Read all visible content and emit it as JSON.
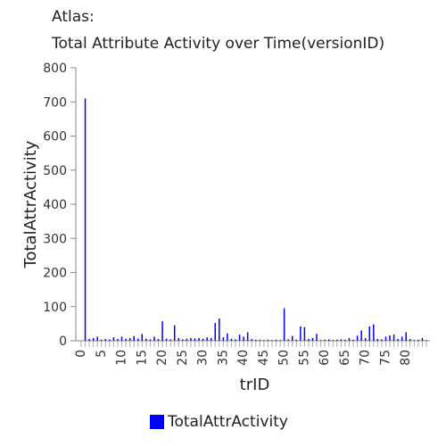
{
  "chart_data": {
    "type": "bar",
    "title": "Atlas:",
    "subtitle": "Total Attribute Activity over Time(versionID)",
    "xlabel": "trID",
    "ylabel": "TotalAttrActivity",
    "ylim": [
      0,
      800
    ],
    "yticks": [
      0,
      100,
      200,
      300,
      400,
      500,
      600,
      700,
      800
    ],
    "xlim": [
      0,
      85
    ],
    "xticks": [
      0,
      5,
      10,
      15,
      20,
      25,
      30,
      35,
      40,
      45,
      50,
      55,
      60,
      65,
      70,
      75,
      80
    ],
    "grid": false,
    "legend_position": "bottom",
    "color": "#0000ff",
    "series": [
      {
        "name": "TotalAttrActivity",
        "x": [
          1,
          2,
          3,
          4,
          5,
          6,
          7,
          8,
          9,
          10,
          11,
          12,
          13,
          14,
          15,
          16,
          17,
          18,
          19,
          20,
          21,
          22,
          23,
          24,
          25,
          26,
          27,
          28,
          29,
          30,
          31,
          32,
          33,
          34,
          35,
          36,
          37,
          38,
          39,
          40,
          41,
          42,
          43,
          44,
          45,
          46,
          47,
          48,
          49,
          50,
          51,
          52,
          53,
          54,
          55,
          56,
          57,
          58,
          59,
          60,
          61,
          62,
          63,
          64,
          65,
          66,
          67,
          68,
          69,
          70,
          71,
          72,
          73,
          74,
          75,
          76,
          77,
          78,
          79,
          80,
          81,
          82,
          83,
          84,
          85
        ],
        "values": [
          710,
          5,
          8,
          12,
          3,
          5,
          4,
          10,
          5,
          12,
          6,
          8,
          14,
          6,
          20,
          6,
          4,
          12,
          5,
          57,
          6,
          4,
          45,
          8,
          4,
          6,
          8,
          7,
          8,
          6,
          10,
          8,
          52,
          65,
          10,
          22,
          6,
          4,
          18,
          12,
          25,
          5,
          3,
          3,
          2,
          3,
          2,
          3,
          2,
          95,
          4,
          14,
          3,
          42,
          40,
          5,
          8,
          20,
          2,
          3,
          4,
          2,
          3,
          4,
          3,
          8,
          3,
          15,
          30,
          8,
          42,
          48,
          5,
          4,
          12,
          16,
          18,
          5,
          12,
          25,
          5,
          2,
          3,
          8,
          2
        ]
      }
    ]
  }
}
